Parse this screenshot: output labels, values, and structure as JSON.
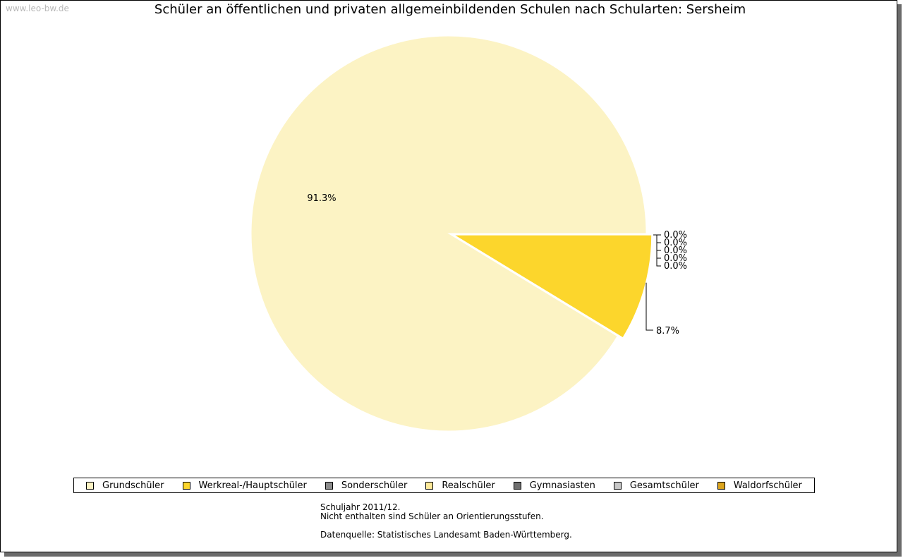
{
  "watermark": "www.leo-bw.de",
  "chart_data": {
    "type": "pie",
    "title": "Schüler an öffentlichen und privaten allgemeinbildenden Schulen nach Schularten: Sersheim",
    "slices": [
      {
        "name": "Grundschüler",
        "value": 91.3,
        "label": "91.3%",
        "color": "#fcf3c4"
      },
      {
        "name": "Werkreal-/Hauptschüler",
        "value": 8.7,
        "label": "8.7%",
        "color": "#fcd62c"
      },
      {
        "name": "Sonderschüler",
        "value": 0.0,
        "label": "0.0%",
        "color": "#8c8c8c"
      },
      {
        "name": "Realschüler",
        "value": 0.0,
        "label": "0.0%",
        "color": "#fdea9a"
      },
      {
        "name": "Gymnasiasten",
        "value": 0.0,
        "label": "0.0%",
        "color": "#707070"
      },
      {
        "name": "Gesamtschüler",
        "value": 0.0,
        "label": "0.0%",
        "color": "#c8c8c8"
      },
      {
        "name": "Waldorfschüler",
        "value": 0.0,
        "label": "0.0%",
        "color": "#dca51e"
      }
    ],
    "legend_position": "bottom"
  },
  "notes": {
    "line1": "Schuljahr 2011/12.",
    "line2": "Nicht enthalten sind Schüler an Orientierungsstufen.",
    "source": "Datenquelle: Statistisches Landesamt Baden-Württemberg."
  }
}
